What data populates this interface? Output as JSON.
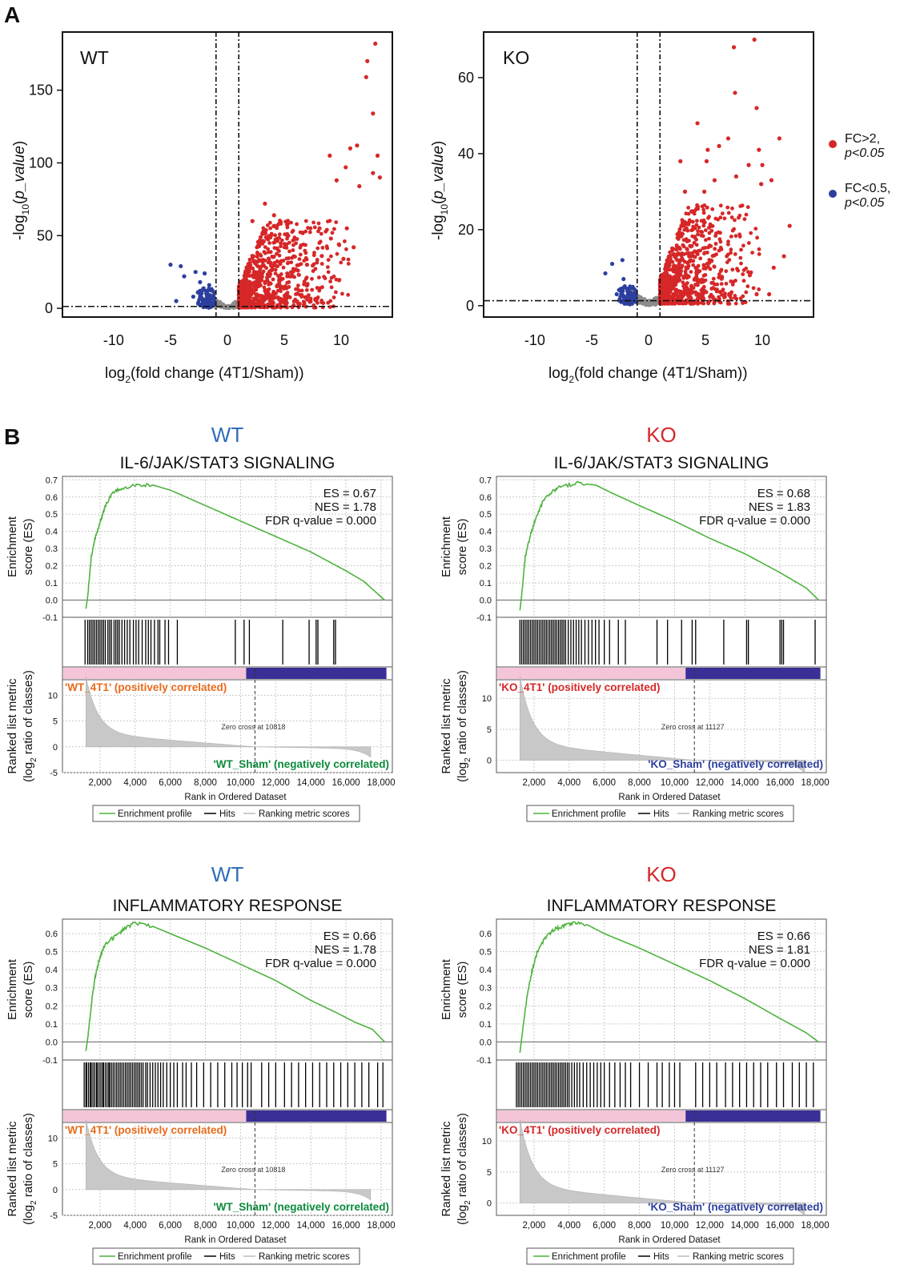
{
  "panel_labels": {
    "a": "A",
    "b": "B"
  },
  "volcano_common": {
    "xlabel": "log2(fold change (4T1/Sham))",
    "xlabel_main": "log",
    "xlabel_sub": "2",
    "xlabel_rest": "(fold change (4T1/Sham))",
    "ylabel_main": "-log",
    "ylabel_sub": "10",
    "ylabel_rest_open": "(",
    "ylabel_italic": "p_value",
    "ylabel_close": ")",
    "xticks": [
      "-10",
      "-5",
      "0",
      "5",
      "10"
    ],
    "xlim": [
      -14.5,
      14.5
    ],
    "fc_threshold_log2": 1,
    "p_threshold_line": 1.3
  },
  "legend_volcano": {
    "up_label_1": "FC>2,",
    "up_label_2": "p<0.05",
    "down_label_1": "FC<0.5,",
    "down_label_2": "p<0.05",
    "up_color": "#d62728",
    "down_color": "#2d3f9e",
    "ns_color": "#8c8c8c"
  },
  "gsea_common": {
    "y_label_1": "Enrichment",
    "y_label_2": "score (ES)",
    "metric_label_1": "Ranked list metric",
    "metric_label_2_pre": "(log",
    "metric_label_2_sub": "2",
    "metric_label_2_post": " ratio of classes)",
    "x_label": "Rank in Ordered Dataset",
    "x_ticks": [
      "2,000",
      "4,000",
      "6,000",
      "8,000",
      "10,000",
      "12,000",
      "14,000",
      "16,000",
      "18,000"
    ],
    "es_ticks": [
      "0.7",
      "0.6",
      "0.5",
      "0.4",
      "0.3",
      "0.2",
      "0.1",
      "0.0",
      "-0.1"
    ],
    "legend": {
      "profile": "Enrichment profile",
      "hits": "Hits",
      "ranking": "Ranking metric scores"
    },
    "profile_color": "#4db33d",
    "pos_bar_color": "#f4c5d8",
    "neg_bar_color": "#3a2f96"
  },
  "chart_data": [
    {
      "type": "scatter",
      "id": "volcano-wt",
      "title": "WT",
      "xlabel": "log2(fold change (4T1/Sham))",
      "ylabel": "-log10(p_value)",
      "xlim": [
        -14.5,
        14.5
      ],
      "ylim": [
        -6,
        190
      ],
      "yticks": [
        0,
        50,
        100,
        150
      ],
      "xticks": [
        -10,
        -5,
        0,
        5,
        10
      ],
      "points_up": [
        [
          13,
          182
        ],
        [
          12.3,
          170
        ],
        [
          12.2,
          159
        ],
        [
          12.8,
          134
        ],
        [
          13.2,
          105
        ],
        [
          12.8,
          93
        ],
        [
          13.4,
          90
        ],
        [
          10.8,
          110
        ],
        [
          10.4,
          97
        ],
        [
          11.4,
          112
        ],
        [
          11.6,
          84
        ],
        [
          9.6,
          88
        ],
        [
          9.0,
          105
        ],
        [
          3.3,
          72
        ],
        [
          4.1,
          64
        ],
        [
          2.2,
          60
        ],
        [
          5.3,
          58
        ],
        [
          6.6,
          52
        ],
        [
          7.3,
          55
        ],
        [
          8.1,
          55
        ],
        [
          9.1,
          48
        ],
        [
          9.8,
          44
        ],
        [
          10.5,
          55
        ],
        [
          11.1,
          42
        ],
        [
          10.2,
          34
        ],
        [
          8.3,
          36
        ],
        [
          7.0,
          30
        ],
        [
          6.2,
          26
        ],
        [
          5.6,
          22
        ],
        [
          4.4,
          48
        ],
        [
          5.2,
          44
        ],
        [
          3.1,
          52
        ],
        [
          2.6,
          42
        ]
      ],
      "cloud_up": {
        "x_range": [
          1,
          11.5
        ],
        "y_max": 60
      },
      "points_down": [
        [
          -5.0,
          30
        ],
        [
          -4.1,
          29
        ],
        [
          -3.8,
          22
        ],
        [
          -2.8,
          25
        ],
        [
          -2.4,
          18
        ],
        [
          -2.0,
          24
        ],
        [
          -1.6,
          16
        ],
        [
          -1.3,
          12
        ],
        [
          -3.0,
          8
        ],
        [
          -4.5,
          5
        ],
        [
          -2.2,
          6
        ],
        [
          -1.8,
          3
        ]
      ],
      "threshold_x": [
        -1,
        1
      ],
      "threshold_y": 1.3
    },
    {
      "type": "scatter",
      "id": "volcano-ko",
      "title": "KO",
      "xlabel": "log2(fold change (4T1/Sham))",
      "ylabel": "-log10(p_value)",
      "xlim": [
        -14.5,
        14.5
      ],
      "ylim": [
        -3,
        72
      ],
      "yticks": [
        0,
        20,
        40,
        60
      ],
      "xticks": [
        -10,
        -5,
        0,
        5,
        10
      ],
      "points_up": [
        [
          9.3,
          70
        ],
        [
          7.5,
          68
        ],
        [
          7.6,
          56
        ],
        [
          9.5,
          52
        ],
        [
          4.3,
          48
        ],
        [
          7.0,
          44
        ],
        [
          11.5,
          44
        ],
        [
          9.7,
          41
        ],
        [
          6.2,
          42
        ],
        [
          2.8,
          38
        ],
        [
          5.1,
          38
        ],
        [
          5.2,
          41
        ],
        [
          8.8,
          37
        ],
        [
          10.0,
          37
        ],
        [
          5.8,
          33
        ],
        [
          3.2,
          30
        ],
        [
          4.9,
          30
        ],
        [
          7.7,
          34
        ],
        [
          9.9,
          32
        ],
        [
          10.8,
          33
        ],
        [
          12.4,
          21
        ],
        [
          11.9,
          13
        ],
        [
          11.0,
          10
        ],
        [
          8.9,
          8
        ],
        [
          9.5,
          3
        ],
        [
          10.6,
          3
        ],
        [
          3.6,
          3
        ]
      ],
      "cloud_up": {
        "x_range": [
          1,
          10.5
        ],
        "y_max": 26
      },
      "points_down": [
        [
          -3.8,
          8.5
        ],
        [
          -3.2,
          11
        ],
        [
          -2.3,
          12
        ],
        [
          -2.2,
          7
        ],
        [
          -1.8,
          4
        ],
        [
          -1.6,
          2.3
        ],
        [
          -2.8,
          3
        ]
      ],
      "threshold_x": [
        -1,
        1
      ],
      "threshold_y": 1.3
    },
    {
      "type": "line",
      "id": "gsea-wt-il6",
      "group": "WT",
      "title": "IL-6/JAK/STAT3 SIGNALING",
      "stats": {
        "es": "ES = 0.67",
        "nes": "NES = 1.78",
        "fdr": "FDR q-value = 0.000"
      },
      "x_range": [
        0,
        18500
      ],
      "es_range": [
        -0.1,
        0.72
      ],
      "profile": [
        [
          1200,
          -0.05
        ],
        [
          1300,
          0.02
        ],
        [
          1500,
          0.25
        ],
        [
          1700,
          0.35
        ],
        [
          1900,
          0.42
        ],
        [
          2150,
          0.5
        ],
        [
          2300,
          0.55
        ],
        [
          2700,
          0.62
        ],
        [
          3200,
          0.65
        ],
        [
          4000,
          0.67
        ],
        [
          5000,
          0.67
        ],
        [
          6000,
          0.64
        ],
        [
          8000,
          0.55
        ],
        [
          10000,
          0.46
        ],
        [
          12000,
          0.37
        ],
        [
          14000,
          0.28
        ],
        [
          16000,
          0.17
        ],
        [
          17000,
          0.11
        ],
        [
          18200,
          0.0
        ]
      ],
      "hits": [
        1150,
        1300,
        1400,
        1500,
        1600,
        1700,
        1800,
        1900,
        2000,
        2100,
        2200,
        2300,
        2450,
        2550,
        2650,
        2800,
        2900,
        3000,
        3100,
        3250,
        3400,
        3550,
        3700,
        3900,
        4050,
        4200,
        4400,
        4600,
        4750,
        4900,
        5100,
        5300,
        5400,
        5700,
        5900,
        6400,
        9700,
        10200,
        10500,
        12400,
        13900,
        14300,
        14400,
        15300,
        15400
      ],
      "metric": {
        "y_range": [
          -5,
          13
        ],
        "y_ticks": [
          10,
          5,
          0,
          -5
        ],
        "pos_label": "'WT_4T1' (positively correlated)",
        "neg_label": "'WT_Sham' (negatively correlated)",
        "neg_label_color": "#0b8a3a",
        "pos_label_color": "#e86a1a",
        "zero_cross": "Zero cross at 10818",
        "zero_cross_rank": 10818,
        "end_rank": 17400
      }
    },
    {
      "type": "line",
      "id": "gsea-ko-il6",
      "group": "KO",
      "title": "IL-6/JAK/STAT3 SIGNALING",
      "stats": {
        "es": "ES = 0.68",
        "nes": "NES = 1.83",
        "fdr": "FDR q-value = 0.000"
      },
      "x_range": [
        0,
        18500
      ],
      "es_range": [
        -0.1,
        0.72
      ],
      "profile": [
        [
          1200,
          -0.06
        ],
        [
          1300,
          0.03
        ],
        [
          1500,
          0.25
        ],
        [
          1800,
          0.38
        ],
        [
          2100,
          0.48
        ],
        [
          2500,
          0.57
        ],
        [
          3000,
          0.63
        ],
        [
          3500,
          0.66
        ],
        [
          4500,
          0.68
        ],
        [
          5500,
          0.67
        ],
        [
          6500,
          0.62
        ],
        [
          8000,
          0.55
        ],
        [
          10000,
          0.46
        ],
        [
          12000,
          0.36
        ],
        [
          14000,
          0.27
        ],
        [
          16000,
          0.16
        ],
        [
          17500,
          0.07
        ],
        [
          18200,
          0.0
        ]
      ],
      "hits": [
        1200,
        1300,
        1400,
        1500,
        1600,
        1700,
        1800,
        1900,
        2000,
        2100,
        2200,
        2300,
        2400,
        2500,
        2600,
        2700,
        2800,
        2900,
        3000,
        3100,
        3200,
        3300,
        3400,
        3500,
        3600,
        3700,
        3800,
        3950,
        4100,
        4250,
        4400,
        4550,
        4700,
        4900,
        5100,
        5300,
        5500,
        5700,
        6000,
        6300,
        6800,
        7200,
        9000,
        9600,
        10400,
        11000,
        11200,
        12800,
        14100,
        14200,
        16000,
        16100,
        16200,
        18000
      ],
      "metric": {
        "y_range": [
          -2,
          13
        ],
        "y_ticks": [
          10,
          5,
          0
        ],
        "pos_label": "'KO_4T1' (positively correlated)",
        "neg_label": "'KO_Sham' (negatively correlated)",
        "neg_label_color": "#2d3f9e",
        "pos_label_color": "#d62728",
        "zero_cross": "Zero cross at 11127",
        "zero_cross_rank": 11127,
        "end_rank": 17400
      }
    },
    {
      "type": "line",
      "id": "gsea-wt-inflam",
      "group": "WT",
      "title": "INFLAMMATORY RESPONSE",
      "stats": {
        "es": "ES = 0.66",
        "nes": "NES = 1.78",
        "fdr": "FDR q-value = 0.000"
      },
      "x_range": [
        0,
        18500
      ],
      "es_range": [
        -0.1,
        0.68
      ],
      "profile": [
        [
          1200,
          -0.05
        ],
        [
          1300,
          0.02
        ],
        [
          1500,
          0.2
        ],
        [
          1700,
          0.35
        ],
        [
          2000,
          0.47
        ],
        [
          2300,
          0.54
        ],
        [
          2800,
          0.58
        ],
        [
          3300,
          0.62
        ],
        [
          4000,
          0.66
        ],
        [
          5000,
          0.64
        ],
        [
          6000,
          0.6
        ],
        [
          8000,
          0.52
        ],
        [
          10000,
          0.43
        ],
        [
          12000,
          0.34
        ],
        [
          14000,
          0.23
        ],
        [
          15500,
          0.16
        ],
        [
          16500,
          0.11
        ],
        [
          17500,
          0.07
        ],
        [
          18200,
          0.0
        ]
      ],
      "hits": [
        1100,
        1200,
        1250,
        1350,
        1450,
        1500,
        1600,
        1700,
        1800,
        1850,
        1950,
        2050,
        2150,
        2200,
        2300,
        2400,
        2500,
        2550,
        2650,
        2750,
        2850,
        2950,
        3050,
        3150,
        3250,
        3350,
        3450,
        3550,
        3650,
        3750,
        3850,
        3950,
        4050,
        4150,
        4250,
        4350,
        4450,
        4600,
        4700,
        4850,
        5000,
        5150,
        5300,
        5450,
        5600,
        5800,
        6000,
        6200,
        6400,
        6700,
        6900,
        7200,
        7500,
        7900,
        8300,
        8700,
        9100,
        9500,
        9800,
        10100,
        10400,
        10600,
        11200,
        11600,
        12000,
        12500,
        12900,
        13300,
        13700,
        14100,
        14500,
        14900,
        15300,
        15700,
        16100,
        16500,
        16900,
        17300,
        17800,
        18100
      ],
      "metric": {
        "y_range": [
          -5,
          13
        ],
        "y_ticks": [
          10,
          5,
          0,
          -5
        ],
        "pos_label": "'WT_4T1' (positively correlated)",
        "neg_label": "'WT_Sham' (negatively correlated)",
        "neg_label_color": "#0b8a3a",
        "pos_label_color": "#e86a1a",
        "zero_cross": "Zero cross at 10818",
        "zero_cross_rank": 10818,
        "end_rank": 17400
      }
    },
    {
      "type": "line",
      "id": "gsea-ko-inflam",
      "group": "KO",
      "title": "INFLAMMATORY RESPONSE",
      "stats": {
        "es": "ES = 0.66",
        "nes": "NES = 1.81",
        "fdr": "FDR q-value = 0.000"
      },
      "x_range": [
        0,
        18500
      ],
      "es_range": [
        -0.1,
        0.68
      ],
      "profile": [
        [
          1200,
          -0.06
        ],
        [
          1300,
          0.02
        ],
        [
          1600,
          0.25
        ],
        [
          1900,
          0.4
        ],
        [
          2200,
          0.5
        ],
        [
          2600,
          0.57
        ],
        [
          3100,
          0.62
        ],
        [
          3600,
          0.64
        ],
        [
          4200,
          0.66
        ],
        [
          5000,
          0.65
        ],
        [
          6000,
          0.6
        ],
        [
          8000,
          0.52
        ],
        [
          10000,
          0.43
        ],
        [
          12000,
          0.34
        ],
        [
          14000,
          0.24
        ],
        [
          16000,
          0.13
        ],
        [
          17500,
          0.05
        ],
        [
          18200,
          0.0
        ]
      ],
      "hits": [
        1000,
        1100,
        1200,
        1300,
        1400,
        1500,
        1600,
        1700,
        1800,
        1900,
        2000,
        2100,
        2200,
        2300,
        2400,
        2500,
        2600,
        2700,
        2800,
        2900,
        3000,
        3100,
        3200,
        3300,
        3400,
        3500,
        3600,
        3700,
        3800,
        3900,
        4000,
        4150,
        4300,
        4450,
        4600,
        4800,
        5000,
        5200,
        5400,
        5600,
        5800,
        6000,
        6300,
        6600,
        6900,
        7200,
        7500,
        8000,
        8500,
        9000,
        9300,
        9700,
        10000,
        10300,
        11200,
        11600,
        12000,
        12400,
        12900,
        13300,
        13700,
        14100,
        14500,
        14900,
        15300,
        15800,
        16200,
        16700,
        17100,
        17500,
        17900
      ],
      "metric": {
        "y_range": [
          -2,
          13
        ],
        "y_ticks": [
          10,
          5,
          0
        ],
        "pos_label": "'KO_4T1' (positively correlated)",
        "neg_label": "'KO_Sham' (negatively correlated)",
        "neg_label_color": "#2d3f9e",
        "pos_label_color": "#d62728",
        "zero_cross": "Zero cross at 11127",
        "zero_cross_rank": 11127,
        "end_rank": 17400
      }
    }
  ],
  "group_colors": {
    "WT": "#2f6fb8",
    "KO": "#d62728"
  }
}
